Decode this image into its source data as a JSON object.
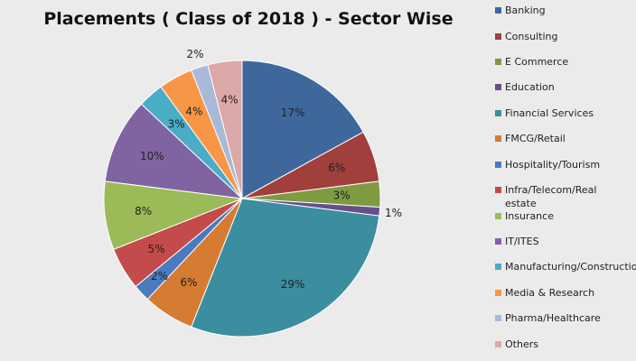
{
  "chart_data": {
    "type": "pie",
    "title": "Placements ( Class of 2018 ) - Sector Wise",
    "legend_position": "right",
    "categories": [
      "Banking",
      "Consulting",
      "E Commerce",
      "Education",
      "Financial Services",
      "FMCG/Retail",
      "Hospitality/Tourism",
      "Infra/Telecom/Real estate",
      "Insurance",
      "IT/ITES",
      "Manufacturing/Construction",
      "Media & Research",
      "Pharma/Healthcare",
      "Others"
    ],
    "values": [
      17,
      6,
      3,
      1,
      29,
      6,
      2,
      5,
      8,
      10,
      3,
      4,
      2,
      4
    ],
    "labels": [
      "17%",
      "6%",
      "3%",
      "1%",
      "29%",
      "6%",
      "2%",
      "5%",
      "8%",
      "10%",
      "3%",
      "4%",
      "2%",
      "4%"
    ],
    "colors": [
      "#3e679c",
      "#a03f3c",
      "#7f9b42",
      "#684f8a",
      "#3b8ea0",
      "#d57b32",
      "#4a7bbf",
      "#c44b4b",
      "#9bbb59",
      "#8064a2",
      "#4bacc6",
      "#f79646",
      "#a9b9d8",
      "#dca8a8"
    ]
  }
}
